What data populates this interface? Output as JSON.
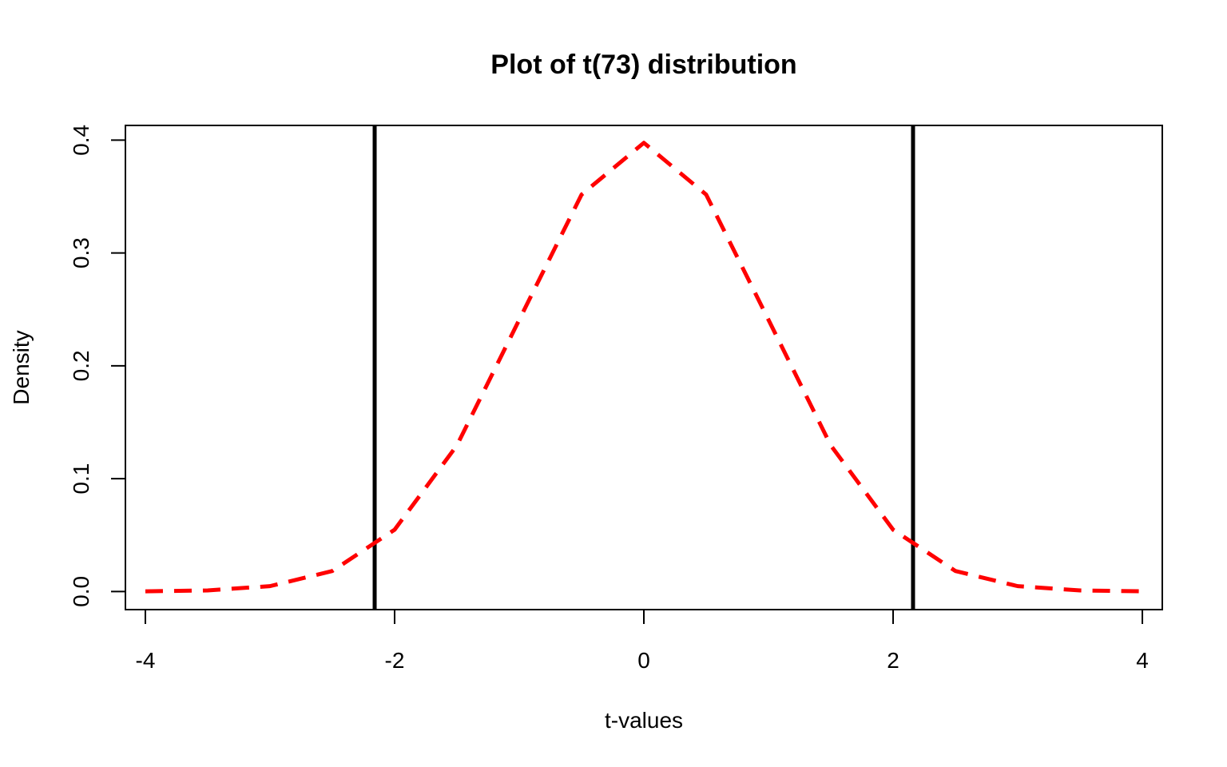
{
  "chart_data": {
    "type": "line",
    "title": "Plot of t(73) distribution",
    "xlabel": "t-values",
    "ylabel": "Density",
    "xlim": [
      -4.16,
      4.16
    ],
    "ylim": [
      -0.016,
      0.413
    ],
    "x_ticks": [
      -4,
      -2,
      0,
      2,
      4
    ],
    "x_tick_labels": [
      "-4",
      "-2",
      "0",
      "2",
      "4"
    ],
    "y_ticks": [
      0.0,
      0.1,
      0.2,
      0.3,
      0.4
    ],
    "y_tick_labels": [
      "0.0",
      "0.1",
      "0.2",
      "0.3",
      "0.4"
    ],
    "grid": false,
    "series": [
      {
        "style": "dashed",
        "color": "#ff0000",
        "x": [
          -4.0,
          -3.5,
          -3.0,
          -2.5,
          -2.0,
          -1.5,
          -1.0,
          -0.5,
          0.0,
          0.5,
          1.0,
          1.5,
          2.0,
          2.5,
          3.0,
          3.5,
          4.0
        ],
        "y": [
          0.0002,
          0.001,
          0.0048,
          0.0182,
          0.0548,
          0.1295,
          0.2408,
          0.3517,
          0.3976,
          0.3517,
          0.2408,
          0.1295,
          0.0548,
          0.0182,
          0.0048,
          0.001,
          0.0002
        ]
      }
    ],
    "vlines": [
      {
        "x": -2.16,
        "color": "#000000"
      },
      {
        "x": 2.16,
        "color": "#000000"
      }
    ]
  }
}
